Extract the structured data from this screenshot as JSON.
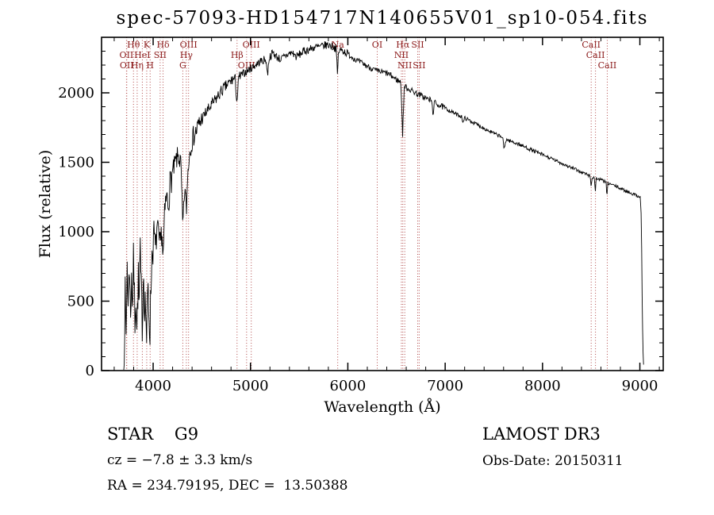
{
  "chart_data": {
    "type": "line",
    "title": "spec-57093-HD154717N140655V01_sp10-054.fits",
    "xlabel": "Wavelength (Å)",
    "ylabel": "Flux (relative)",
    "xlim": [
      3470,
      9240
    ],
    "ylim": [
      0,
      2400
    ],
    "xticks": [
      4000,
      5000,
      6000,
      7000,
      8000,
      9000
    ],
    "x_minor_step": 200,
    "yticks": [
      0,
      500,
      1000,
      1500,
      2000
    ],
    "y_minor_step": 100,
    "grid": false,
    "legend": "none",
    "line_color": "#000000",
    "marker_line_color": "#b24a4a",
    "marker_label_color": "#8b1a1a",
    "spectral_lines": [
      {
        "label": "OII",
        "wl": 3726,
        "row": 2
      },
      {
        "label": "OII",
        "wl": 3729,
        "row": 3
      },
      {
        "label": "Hθ",
        "wl": 3798,
        "row": 1
      },
      {
        "label": "Hη",
        "wl": 3836,
        "row": 3
      },
      {
        "label": "HeI",
        "wl": 3889,
        "row": 2
      },
      {
        "label": "K",
        "wl": 3934,
        "row": 1
      },
      {
        "label": "H",
        "wl": 3969,
        "row": 3
      },
      {
        "label": "SII",
        "wl": 4072,
        "row": 2
      },
      {
        "label": "Hδ",
        "wl": 4102,
        "row": 1
      },
      {
        "label": "G",
        "wl": 4305,
        "row": 3
      },
      {
        "label": "Hγ",
        "wl": 4341,
        "row": 2
      },
      {
        "label": "OIII",
        "wl": 4364,
        "row": 1
      },
      {
        "label": "Hβ",
        "wl": 4862,
        "row": 2
      },
      {
        "label": "OIII",
        "wl": 4960,
        "row": 3
      },
      {
        "label": "OIII",
        "wl": 5008,
        "row": 1
      },
      {
        "label": "Na",
        "wl": 5896,
        "row": 1
      },
      {
        "label": "OI",
        "wl": 6302,
        "row": 1
      },
      {
        "label": "NII",
        "wl": 6550,
        "row": 2
      },
      {
        "label": "Hα",
        "wl": 6565,
        "row": 1
      },
      {
        "label": "NII",
        "wl": 6585,
        "row": 3
      },
      {
        "label": "SII",
        "wl": 6718,
        "row": 1
      },
      {
        "label": "SII",
        "wl": 6733,
        "row": 3
      },
      {
        "label": "CaII",
        "wl": 8500,
        "row": 1
      },
      {
        "label": "CaII",
        "wl": 8544,
        "row": 2
      },
      {
        "label": "CaII",
        "wl": 8665,
        "row": 3
      }
    ],
    "spectrum": {
      "step": 5,
      "anchors": [
        [
          3698,
          5
        ],
        [
          3700,
          100
        ],
        [
          3712,
          550
        ],
        [
          3722,
          200
        ],
        [
          3734,
          850
        ],
        [
          3744,
          400
        ],
        [
          3756,
          900
        ],
        [
          3766,
          300
        ],
        [
          3778,
          750
        ],
        [
          3788,
          450
        ],
        [
          3800,
          820
        ],
        [
          3812,
          350
        ],
        [
          3822,
          600
        ],
        [
          3834,
          250
        ],
        [
          3846,
          700
        ],
        [
          3856,
          400
        ],
        [
          3866,
          850
        ],
        [
          3880,
          500
        ],
        [
          3889,
          350
        ],
        [
          3900,
          750
        ],
        [
          3912,
          500
        ],
        [
          3925,
          450
        ],
        [
          3934,
          180
        ],
        [
          3946,
          600
        ],
        [
          3958,
          400
        ],
        [
          3969,
          300
        ],
        [
          3982,
          750
        ],
        [
          3995,
          900
        ],
        [
          4010,
          1000
        ],
        [
          4025,
          850
        ],
        [
          4040,
          1050
        ],
        [
          4055,
          950
        ],
        [
          4072,
          880
        ],
        [
          4090,
          1020
        ],
        [
          4102,
          800
        ],
        [
          4118,
          1100
        ],
        [
          4135,
          1250
        ],
        [
          4155,
          1200
        ],
        [
          4175,
          1350
        ],
        [
          4200,
          1420
        ],
        [
          4230,
          1500
        ],
        [
          4260,
          1550
        ],
        [
          4285,
          1480
        ],
        [
          4305,
          1020
        ],
        [
          4325,
          1330
        ],
        [
          4341,
          1140
        ],
        [
          4360,
          1480
        ],
        [
          4385,
          1620
        ],
        [
          4410,
          1680
        ],
        [
          4440,
          1720
        ],
        [
          4475,
          1780
        ],
        [
          4510,
          1820
        ],
        [
          4545,
          1860
        ],
        [
          4580,
          1890
        ],
        [
          4620,
          1930
        ],
        [
          4660,
          1970
        ],
        [
          4700,
          2010
        ],
        [
          4740,
          2040
        ],
        [
          4780,
          2070
        ],
        [
          4820,
          2100
        ],
        [
          4845,
          2090
        ],
        [
          4861,
          1930
        ],
        [
          4880,
          2110
        ],
        [
          4910,
          2130
        ],
        [
          4950,
          2150
        ],
        [
          4990,
          2170
        ],
        [
          5030,
          2190
        ],
        [
          5070,
          2210
        ],
        [
          5110,
          2230
        ],
        [
          5160,
          2240
        ],
        [
          5175,
          2120
        ],
        [
          5190,
          2250
        ],
        [
          5230,
          2290
        ],
        [
          5270,
          2260
        ],
        [
          5310,
          2240
        ],
        [
          5350,
          2260
        ],
        [
          5390,
          2280
        ],
        [
          5430,
          2290
        ],
        [
          5470,
          2260
        ],
        [
          5510,
          2280
        ],
        [
          5550,
          2300
        ],
        [
          5590,
          2310
        ],
        [
          5630,
          2320
        ],
        [
          5670,
          2330
        ],
        [
          5710,
          2330
        ],
        [
          5750,
          2340
        ],
        [
          5790,
          2345
        ],
        [
          5830,
          2340
        ],
        [
          5880,
          2320
        ],
        [
          5893,
          2130
        ],
        [
          5905,
          2300
        ],
        [
          5940,
          2310
        ],
        [
          5980,
          2290
        ],
        [
          6020,
          2270
        ],
        [
          6060,
          2250
        ],
        [
          6100,
          2230
        ],
        [
          6140,
          2215
        ],
        [
          6180,
          2200
        ],
        [
          6220,
          2185
        ],
        [
          6260,
          2170
        ],
        [
          6300,
          2155
        ],
        [
          6340,
          2150
        ],
        [
          6380,
          2145
        ],
        [
          6420,
          2135
        ],
        [
          6460,
          2115
        ],
        [
          6500,
          2095
        ],
        [
          6545,
          2075
        ],
        [
          6563,
          1700
        ],
        [
          6580,
          2050
        ],
        [
          6620,
          2030
        ],
        [
          6660,
          2015
        ],
        [
          6700,
          2000
        ],
        [
          6740,
          1985
        ],
        [
          6780,
          1970
        ],
        [
          6820,
          1955
        ],
        [
          6860,
          1945
        ],
        [
          6875,
          1850
        ],
        [
          6890,
          1930
        ],
        [
          6930,
          1915
        ],
        [
          6970,
          1900
        ],
        [
          7010,
          1885
        ],
        [
          7050,
          1870
        ],
        [
          7090,
          1855
        ],
        [
          7130,
          1840
        ],
        [
          7170,
          1830
        ],
        [
          7185,
          1780
        ],
        [
          7200,
          1820
        ],
        [
          7240,
          1805
        ],
        [
          7280,
          1790
        ],
        [
          7320,
          1775
        ],
        [
          7360,
          1760
        ],
        [
          7400,
          1745
        ],
        [
          7440,
          1730
        ],
        [
          7480,
          1715
        ],
        [
          7520,
          1700
        ],
        [
          7560,
          1690
        ],
        [
          7590,
          1680
        ],
        [
          7605,
          1590
        ],
        [
          7625,
          1665
        ],
        [
          7660,
          1655
        ],
        [
          7700,
          1645
        ],
        [
          7740,
          1635
        ],
        [
          7780,
          1622
        ],
        [
          7820,
          1610
        ],
        [
          7860,
          1598
        ],
        [
          7900,
          1585
        ],
        [
          7940,
          1572
        ],
        [
          7980,
          1560
        ],
        [
          8020,
          1548
        ],
        [
          8060,
          1535
        ],
        [
          8100,
          1523
        ],
        [
          8140,
          1510
        ],
        [
          8180,
          1498
        ],
        [
          8220,
          1485
        ],
        [
          8260,
          1472
        ],
        [
          8300,
          1460
        ],
        [
          8340,
          1448
        ],
        [
          8380,
          1435
        ],
        [
          8420,
          1423
        ],
        [
          8460,
          1412
        ],
        [
          8490,
          1400
        ],
        [
          8500,
          1320
        ],
        [
          8510,
          1395
        ],
        [
          8532,
          1390
        ],
        [
          8542,
          1290
        ],
        [
          8552,
          1385
        ],
        [
          8590,
          1375
        ],
        [
          8620,
          1368
        ],
        [
          8652,
          1358
        ],
        [
          8662,
          1250
        ],
        [
          8672,
          1350
        ],
        [
          8710,
          1340
        ],
        [
          8750,
          1328
        ],
        [
          8790,
          1315
        ],
        [
          8830,
          1302
        ],
        [
          8870,
          1290
        ],
        [
          8910,
          1278
        ],
        [
          8950,
          1266
        ],
        [
          8990,
          1255
        ],
        [
          9005,
          1250
        ],
        [
          9015,
          1100
        ],
        [
          9025,
          400
        ],
        [
          9035,
          60
        ],
        [
          9040,
          30
        ]
      ],
      "noise_segments": [
        [
          3700,
          4000,
          170
        ],
        [
          4000,
          4200,
          110
        ],
        [
          4200,
          4500,
          80
        ],
        [
          4500,
          4900,
          45
        ],
        [
          4900,
          6000,
          30
        ],
        [
          6000,
          7000,
          22
        ],
        [
          7000,
          8000,
          14
        ],
        [
          8000,
          9010,
          12
        ],
        [
          9010,
          9045,
          8
        ]
      ]
    }
  },
  "annotations": {
    "object_class": "STAR    G9",
    "cz": "cz = −7.8 ± 3.3 km/s",
    "radec": "RA = 234.79195, DEC =  13.50388",
    "survey": "LAMOST DR3",
    "obs_date": "Obs-Date: 20150311"
  }
}
